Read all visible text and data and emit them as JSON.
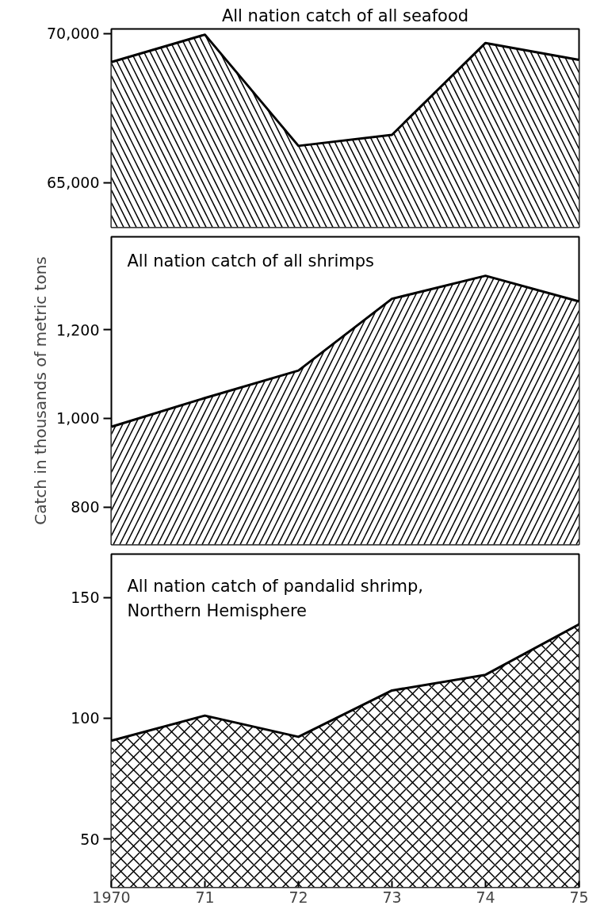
{
  "chart_data": [
    {
      "type": "area",
      "title": "All nation catch of all seafood",
      "x": [
        1970,
        1971,
        1972,
        1973,
        1974,
        1975
      ],
      "xlim": [
        1970,
        1975
      ],
      "ylim": [
        63500,
        70150
      ],
      "yticks": [
        {
          "value": 65000,
          "label": "65,000"
        },
        {
          "value": 70000,
          "label": "70,000"
        }
      ],
      "tick_labels": "y",
      "grid": false,
      "series": [
        {
          "color": "#000000",
          "values": [
            69040,
            69960,
            66230,
            66600,
            69680,
            69110
          ]
        }
      ]
    },
    {
      "type": "area",
      "title": "All nation catch of all shrimps",
      "ylabel": "Catch in thousands of metric tons",
      "x": [
        1970,
        1971,
        1972,
        1973,
        1974,
        1975
      ],
      "xlim": [
        1970,
        1975
      ],
      "ylim": [
        715,
        1410
      ],
      "yticks": [
        800,
        {
          "value": 1000,
          "label": "1,000"
        },
        {
          "value": 1200,
          "label": "1,200"
        }
      ],
      "tick_labels": "y",
      "grid": false,
      "series": [
        {
          "color": "#000000",
          "values": [
            981,
            1046,
            1108,
            1270,
            1322,
            1264
          ]
        }
      ]
    },
    {
      "type": "area",
      "title": "All nation catch of pandalid shrimp,\nNorthern Hemisphere",
      "x": [
        1970,
        1971,
        1972,
        1973,
        1974,
        1975
      ],
      "xlim": [
        1970,
        1975
      ],
      "ylim": [
        30,
        168
      ],
      "yticks": [
        50,
        100,
        150
      ],
      "xticks": [
        1970,
        {
          "value": 1971,
          "label": "71"
        },
        {
          "value": 1972,
          "label": "72"
        },
        {
          "value": 1973,
          "label": "73"
        },
        {
          "value": 1974,
          "label": "74"
        },
        {
          "value": 1975,
          "label": "75"
        }
      ],
      "grid": false,
      "series": [
        {
          "color": "#000000",
          "values": [
            90.7,
            101.1,
            92.3,
            111.5,
            118,
            138.9
          ]
        }
      ]
    }
  ]
}
